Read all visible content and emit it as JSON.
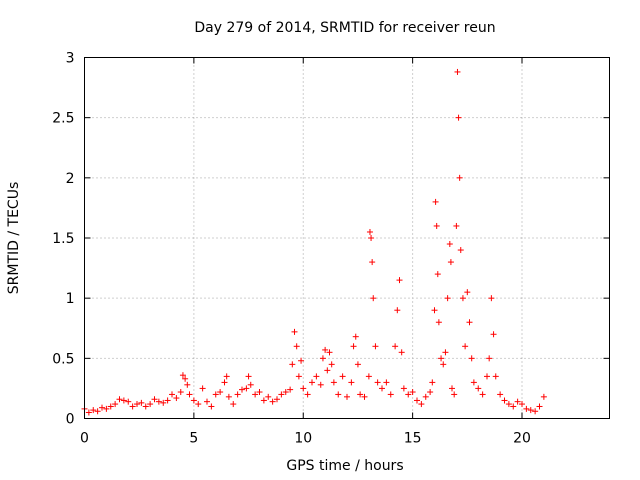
{
  "chart_data": {
    "type": "scatter",
    "title": "Day 279 of 2014, SRMTID for receiver reun",
    "xlabel": "GPS time / hours",
    "ylabel": "SRMTID / TECUs",
    "xlim": [
      0,
      24
    ],
    "ylim": [
      0,
      3
    ],
    "xticks": [
      0,
      5,
      10,
      15,
      20
    ],
    "xtick_labels": [
      "0",
      "5",
      "10",
      "15",
      "20"
    ],
    "yticks": [
      0,
      0.5,
      1,
      1.5,
      2,
      2.5,
      3
    ],
    "ytick_labels": [
      "0",
      "0.5",
      "1",
      "1.5",
      "2",
      "2.5",
      "3"
    ],
    "grid": true,
    "marker": "+",
    "color": "#ff0000",
    "series": [
      {
        "name": "SRMTID",
        "x": [
          0.0,
          0.2,
          0.4,
          0.6,
          0.8,
          1.0,
          1.2,
          1.4,
          1.6,
          1.8,
          2.0,
          2.2,
          2.4,
          2.6,
          2.8,
          3.0,
          3.2,
          3.4,
          3.6,
          3.8,
          4.0,
          4.2,
          4.4,
          4.5,
          4.6,
          4.7,
          4.8,
          5.0,
          5.2,
          5.4,
          5.6,
          5.8,
          6.0,
          6.2,
          6.4,
          6.5,
          6.6,
          6.8,
          7.0,
          7.2,
          7.4,
          7.5,
          7.6,
          7.8,
          8.0,
          8.2,
          8.4,
          8.6,
          8.8,
          9.0,
          9.2,
          9.4,
          9.5,
          9.6,
          9.7,
          9.8,
          9.9,
          10.0,
          10.2,
          10.4,
          10.6,
          10.8,
          10.9,
          11.0,
          11.1,
          11.2,
          11.3,
          11.4,
          11.6,
          11.8,
          12.0,
          12.2,
          12.3,
          12.4,
          12.5,
          12.6,
          12.8,
          13.0,
          13.05,
          13.1,
          13.15,
          13.2,
          13.3,
          13.4,
          13.6,
          13.8,
          14.0,
          14.2,
          14.3,
          14.4,
          14.5,
          14.6,
          14.8,
          15.0,
          15.2,
          15.4,
          15.6,
          15.8,
          15.9,
          16.0,
          16.05,
          16.1,
          16.15,
          16.2,
          16.3,
          16.4,
          16.5,
          16.6,
          16.7,
          16.75,
          16.8,
          16.9,
          17.0,
          17.05,
          17.1,
          17.15,
          17.2,
          17.3,
          17.4,
          17.5,
          17.6,
          17.7,
          17.8,
          18.0,
          18.2,
          18.4,
          18.5,
          18.6,
          18.7,
          18.8,
          19.0,
          19.2,
          19.4,
          19.6,
          19.8,
          20.0,
          20.2,
          20.4,
          20.6,
          20.8,
          21.0
        ],
        "y": [
          0.08,
          0.05,
          0.07,
          0.06,
          0.09,
          0.08,
          0.1,
          0.12,
          0.16,
          0.15,
          0.14,
          0.1,
          0.12,
          0.13,
          0.1,
          0.12,
          0.16,
          0.14,
          0.13,
          0.15,
          0.2,
          0.17,
          0.22,
          0.36,
          0.33,
          0.28,
          0.2,
          0.15,
          0.12,
          0.25,
          0.14,
          0.1,
          0.2,
          0.22,
          0.3,
          0.35,
          0.18,
          0.12,
          0.2,
          0.24,
          0.25,
          0.35,
          0.28,
          0.2,
          0.22,
          0.15,
          0.18,
          0.14,
          0.16,
          0.2,
          0.22,
          0.24,
          0.45,
          0.72,
          0.6,
          0.35,
          0.48,
          0.25,
          0.2,
          0.3,
          0.35,
          0.28,
          0.5,
          0.57,
          0.4,
          0.55,
          0.45,
          0.3,
          0.2,
          0.35,
          0.18,
          0.3,
          0.6,
          0.68,
          0.45,
          0.2,
          0.18,
          0.35,
          1.55,
          1.5,
          1.3,
          1.0,
          0.6,
          0.3,
          0.25,
          0.3,
          0.2,
          0.6,
          0.9,
          1.15,
          0.55,
          0.25,
          0.2,
          0.22,
          0.15,
          0.12,
          0.18,
          0.22,
          0.3,
          0.9,
          1.8,
          1.6,
          1.2,
          0.8,
          0.5,
          0.45,
          0.55,
          1.0,
          1.45,
          1.3,
          0.25,
          0.2,
          1.6,
          2.88,
          2.5,
          2.0,
          1.4,
          1.0,
          0.6,
          1.05,
          0.8,
          0.5,
          0.3,
          0.25,
          0.2,
          0.35,
          0.5,
          1.0,
          0.7,
          0.35,
          0.2,
          0.15,
          0.12,
          0.1,
          0.14,
          0.12,
          0.08,
          0.07,
          0.06,
          0.1,
          0.18
        ]
      }
    ]
  }
}
